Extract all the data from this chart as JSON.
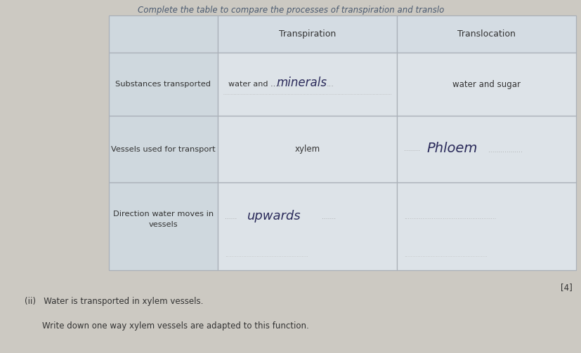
{
  "bg_color": "#ccc9c2",
  "title_text": "Complete the table to compare the processes of transpiration and translo",
  "col_headers": [
    "Transpiration",
    "Translocation"
  ],
  "row_labels": [
    "Substances transported",
    "Vessels used for transport",
    "Direction water moves in\nvessels"
  ],
  "footer_mark": "[4]",
  "subq_ii": "(ii)   Water is transported in xylem vessels.",
  "subq_ii_b": "Write down one way xylem vessels are adapted to this function.",
  "cell_bg": "#dde3e8",
  "header_bg": "#d4dce3",
  "label_bg": "#cfd8de",
  "border_color": "#aab0b8",
  "text_color": "#333333",
  "hw_color": "#2a2a5a",
  "title_color": "#4a5a70"
}
